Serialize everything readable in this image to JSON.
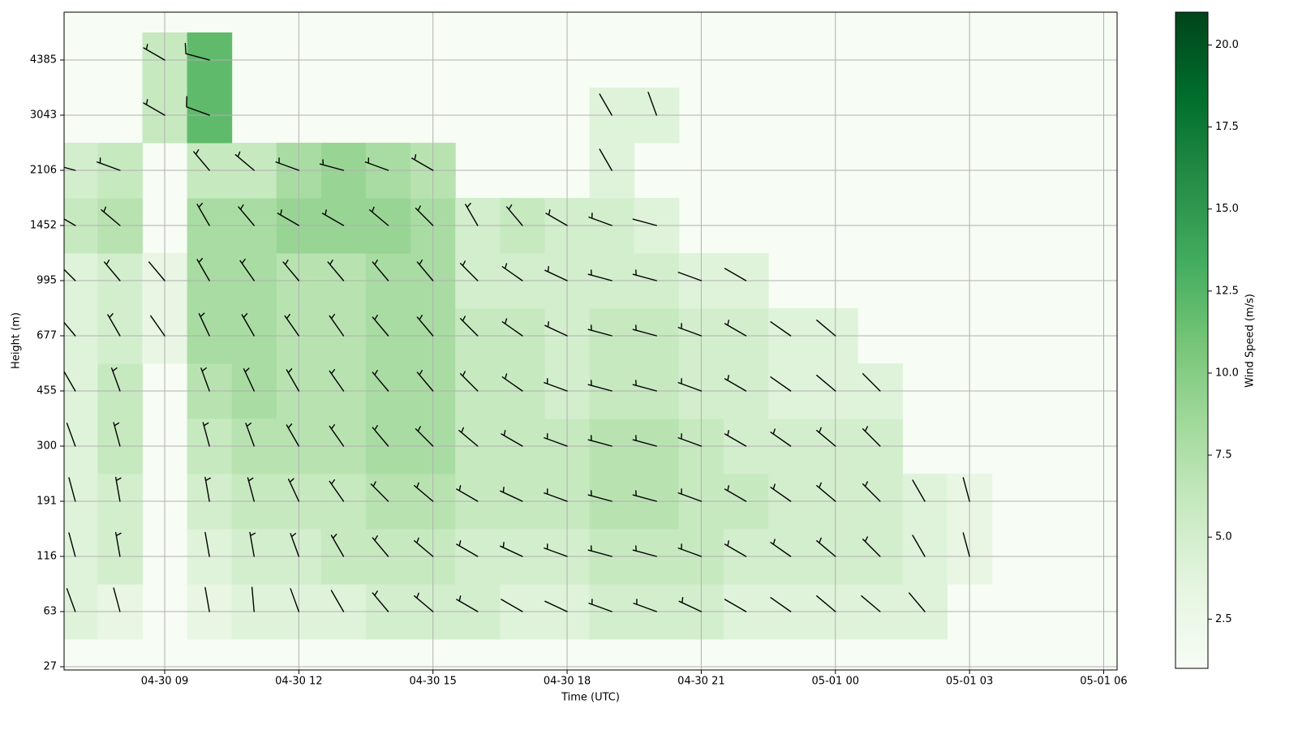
{
  "chart_data": {
    "type": "heatmap",
    "x_label": "Time (UTC)",
    "y_label": "Height (m)",
    "colorbar_label": "Wind Speed (m/s)",
    "colormap": [
      "#f7fcf5",
      "#e5f5e0",
      "#c7e9c0",
      "#a1d99b",
      "#74c476",
      "#41ab5d",
      "#238b45",
      "#006d2c",
      "#00441b"
    ],
    "clim": [
      1,
      21
    ],
    "colorbar_ticks": [
      2.5,
      {
        "value": 5,
        "label": "5.0"
      },
      7.5,
      {
        "value": 10,
        "label": "10.0"
      },
      12.5,
      {
        "value": 15,
        "label": "15.0"
      },
      17.5,
      {
        "value": 20,
        "label": "20.0"
      }
    ],
    "xlim": [
      6.75,
      30.3
    ],
    "xticks": [
      {
        "value": 9,
        "label": "04-30 09"
      },
      {
        "value": 12,
        "label": "04-30 12"
      },
      {
        "value": 15,
        "label": "04-30 15"
      },
      {
        "value": 18,
        "label": "04-30 18"
      },
      {
        "value": 21,
        "label": "04-30 21"
      },
      {
        "value": 24,
        "label": "05-01 00"
      },
      {
        "value": 27,
        "label": "05-01 03"
      },
      {
        "value": 30,
        "label": "05-01 06"
      }
    ],
    "x": [
      7,
      8,
      9,
      10,
      11,
      12,
      13,
      14,
      15,
      16,
      17,
      18,
      19,
      20,
      21,
      22,
      23,
      24,
      25,
      26,
      27
    ],
    "levels": [
      27,
      63,
      116,
      191,
      300,
      455,
      677,
      995,
      1452,
      2106,
      3043,
      4385
    ],
    "yticks": [
      27,
      63,
      116,
      191,
      300,
      455,
      677,
      995,
      1452,
      2106,
      3043,
      4385
    ],
    "grid": true,
    "speed": [
      [
        null,
        null,
        null,
        null,
        null,
        null,
        null,
        null,
        null,
        null,
        null,
        null,
        null,
        null,
        null,
        null,
        null,
        null,
        null,
        null,
        null
      ],
      [
        4,
        3,
        null,
        3,
        4,
        4,
        4,
        5,
        5,
        5,
        4,
        4,
        5,
        5,
        5,
        4,
        4,
        4,
        4,
        4,
        null
      ],
      [
        4,
        5,
        null,
        4,
        5,
        5,
        6,
        6,
        6,
        5,
        5,
        5,
        6,
        6,
        6,
        5,
        5,
        5,
        5,
        4,
        3
      ],
      [
        4,
        5,
        null,
        5,
        6,
        6,
        6,
        7,
        7,
        6,
        6,
        6,
        7,
        7,
        6,
        6,
        5,
        5,
        5,
        4,
        3
      ],
      [
        4,
        6,
        null,
        6,
        7,
        7,
        7,
        8,
        8,
        6,
        6,
        6,
        7,
        7,
        6,
        5,
        5,
        5,
        5,
        null,
        null
      ],
      [
        4,
        6,
        null,
        7,
        8,
        7,
        7,
        8,
        8,
        6,
        6,
        5,
        6,
        6,
        5,
        5,
        4,
        4,
        4,
        null,
        null
      ],
      [
        4,
        5,
        3,
        8,
        8,
        7,
        7,
        8,
        8,
        6,
        6,
        5,
        6,
        6,
        5,
        5,
        4,
        4,
        null,
        null,
        null
      ],
      [
        4,
        5,
        3,
        8,
        8,
        7,
        7,
        8,
        8,
        5,
        5,
        5,
        5,
        5,
        4,
        4,
        null,
        null,
        null,
        null,
        null
      ],
      [
        6,
        7,
        null,
        8,
        8,
        9,
        9,
        9,
        8,
        5,
        6,
        5,
        5,
        4,
        null,
        null,
        null,
        null,
        null,
        null,
        null
      ],
      [
        5,
        6,
        null,
        6,
        6,
        8,
        9,
        8,
        7,
        null,
        null,
        null,
        4,
        null,
        null,
        null,
        null,
        null,
        null,
        null,
        null
      ],
      [
        null,
        null,
        6,
        12,
        null,
        null,
        null,
        null,
        null,
        null,
        null,
        null,
        4,
        4,
        null,
        null,
        null,
        null,
        null,
        null,
        null
      ],
      [
        null,
        null,
        6,
        12,
        null,
        null,
        null,
        null,
        null,
        null,
        null,
        null,
        null,
        null,
        null,
        null,
        null,
        null,
        null,
        null,
        null
      ]
    ],
    "direction": [
      [
        null,
        null,
        null,
        null,
        null,
        null,
        null,
        null,
        null,
        null,
        null,
        null,
        null,
        null,
        null,
        null,
        null,
        null,
        null,
        null,
        null
      ],
      [
        340,
        345,
        null,
        350,
        355,
        340,
        330,
        320,
        310,
        300,
        300,
        295,
        290,
        290,
        295,
        300,
        305,
        310,
        310,
        320,
        null
      ],
      [
        345,
        350,
        null,
        350,
        350,
        340,
        330,
        320,
        310,
        300,
        295,
        290,
        285,
        285,
        290,
        300,
        305,
        310,
        315,
        330,
        345
      ],
      [
        345,
        350,
        null,
        350,
        345,
        335,
        325,
        315,
        310,
        300,
        295,
        290,
        285,
        285,
        290,
        300,
        305,
        310,
        315,
        330,
        345
      ],
      [
        340,
        345,
        null,
        345,
        340,
        330,
        325,
        320,
        315,
        310,
        300,
        290,
        285,
        285,
        290,
        300,
        305,
        310,
        315,
        null,
        null
      ],
      [
        330,
        340,
        null,
        340,
        335,
        330,
        325,
        320,
        320,
        315,
        305,
        290,
        285,
        285,
        290,
        300,
        305,
        310,
        315,
        null,
        null
      ],
      [
        320,
        330,
        325,
        335,
        330,
        325,
        325,
        320,
        320,
        315,
        305,
        295,
        285,
        285,
        290,
        300,
        305,
        310,
        null,
        null,
        null
      ],
      [
        315,
        320,
        320,
        330,
        325,
        320,
        320,
        320,
        320,
        315,
        305,
        295,
        285,
        285,
        290,
        300,
        null,
        null,
        null,
        null,
        null
      ],
      [
        300,
        310,
        null,
        330,
        320,
        300,
        300,
        310,
        315,
        330,
        320,
        300,
        290,
        285,
        null,
        null,
        null,
        null,
        null,
        null,
        null
      ],
      [
        285,
        290,
        null,
        320,
        310,
        290,
        285,
        290,
        300,
        null,
        null,
        null,
        330,
        null,
        null,
        null,
        null,
        null,
        null,
        null,
        null
      ],
      [
        null,
        null,
        300,
        290,
        null,
        null,
        null,
        null,
        null,
        null,
        null,
        null,
        330,
        340,
        null,
        null,
        null,
        null,
        null,
        null,
        null
      ],
      [
        null,
        null,
        300,
        285,
        null,
        null,
        null,
        null,
        null,
        null,
        null,
        null,
        null,
        null,
        null,
        null,
        null,
        null,
        null,
        null,
        null
      ]
    ]
  }
}
